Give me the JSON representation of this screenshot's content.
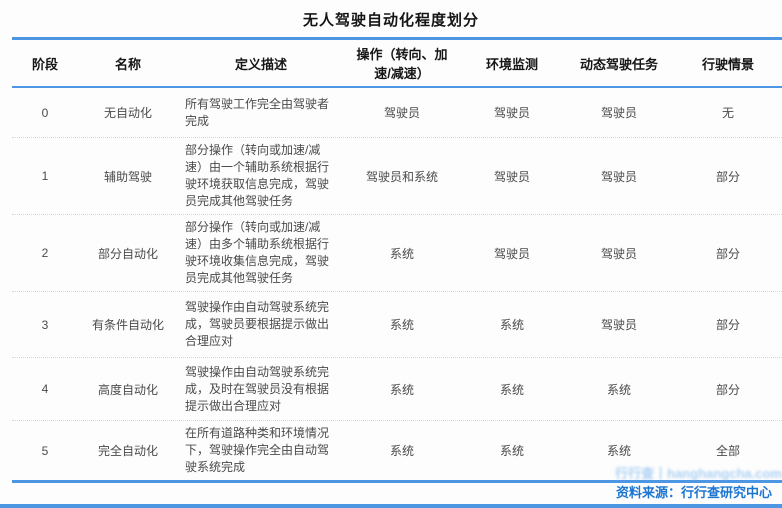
{
  "title": "无人驾驶自动化程度划分",
  "table": {
    "columns": [
      "阶段",
      "名称",
      "定义描述",
      "操作（转向、加速/减速）",
      "环境监测",
      "动态驾驶任务",
      "行驶情景"
    ],
    "rows": [
      {
        "stage": "0",
        "name": "无自动化",
        "definition": "所有驾驶工作完全由驾驶者完成",
        "operation": "驾驶员",
        "monitoring": "驾驶员",
        "task": "驾驶员",
        "scenario": "无"
      },
      {
        "stage": "1",
        "name": "辅助驾驶",
        "definition": "部分操作（转向或加速/减速）由一个辅助系统根据行驶环境获取信息完成，驾驶员完成其他驾驶任务",
        "operation": "驾驶员和系统",
        "monitoring": "驾驶员",
        "task": "驾驶员",
        "scenario": "部分"
      },
      {
        "stage": "2",
        "name": "部分自动化",
        "definition": "部分操作（转向或加速/减速）由多个辅助系统根据行驶环境收集信息完成，驾驶员完成其他驾驶任务",
        "operation": "系统",
        "monitoring": "驾驶员",
        "task": "驾驶员",
        "scenario": "部分"
      },
      {
        "stage": "3",
        "name": "有条件自动化",
        "definition": "驾驶操作由自动驾驶系统完成，驾驶员要根据提示做出合理应对",
        "operation": "系统",
        "monitoring": "系统",
        "task": "驾驶员",
        "scenario": "部分"
      },
      {
        "stage": "4",
        "name": "高度自动化",
        "definition": "驾驶操作由自动驾驶系统完成，及时在驾驶员没有根据提示做出合理应对",
        "operation": "系统",
        "monitoring": "系统",
        "task": "系统",
        "scenario": "部分"
      },
      {
        "stage": "5",
        "name": "完全自动化",
        "definition": "在所有道路种类和环境情况下，驾驶操作完全由自动驾驶系统完成",
        "operation": "系统",
        "monitoring": "系统",
        "task": "系统",
        "scenario": "全部"
      }
    ]
  },
  "watermark": {
    "text": "行行查丨hanghangcha.com"
  },
  "footer": {
    "source_label": "资料来源：行行查研究中心"
  },
  "colors": {
    "accent_blue": "#4d96e3",
    "source_blue": "#1b75d1",
    "header_text": "#161616",
    "body_text": "#4a4a4a"
  }
}
